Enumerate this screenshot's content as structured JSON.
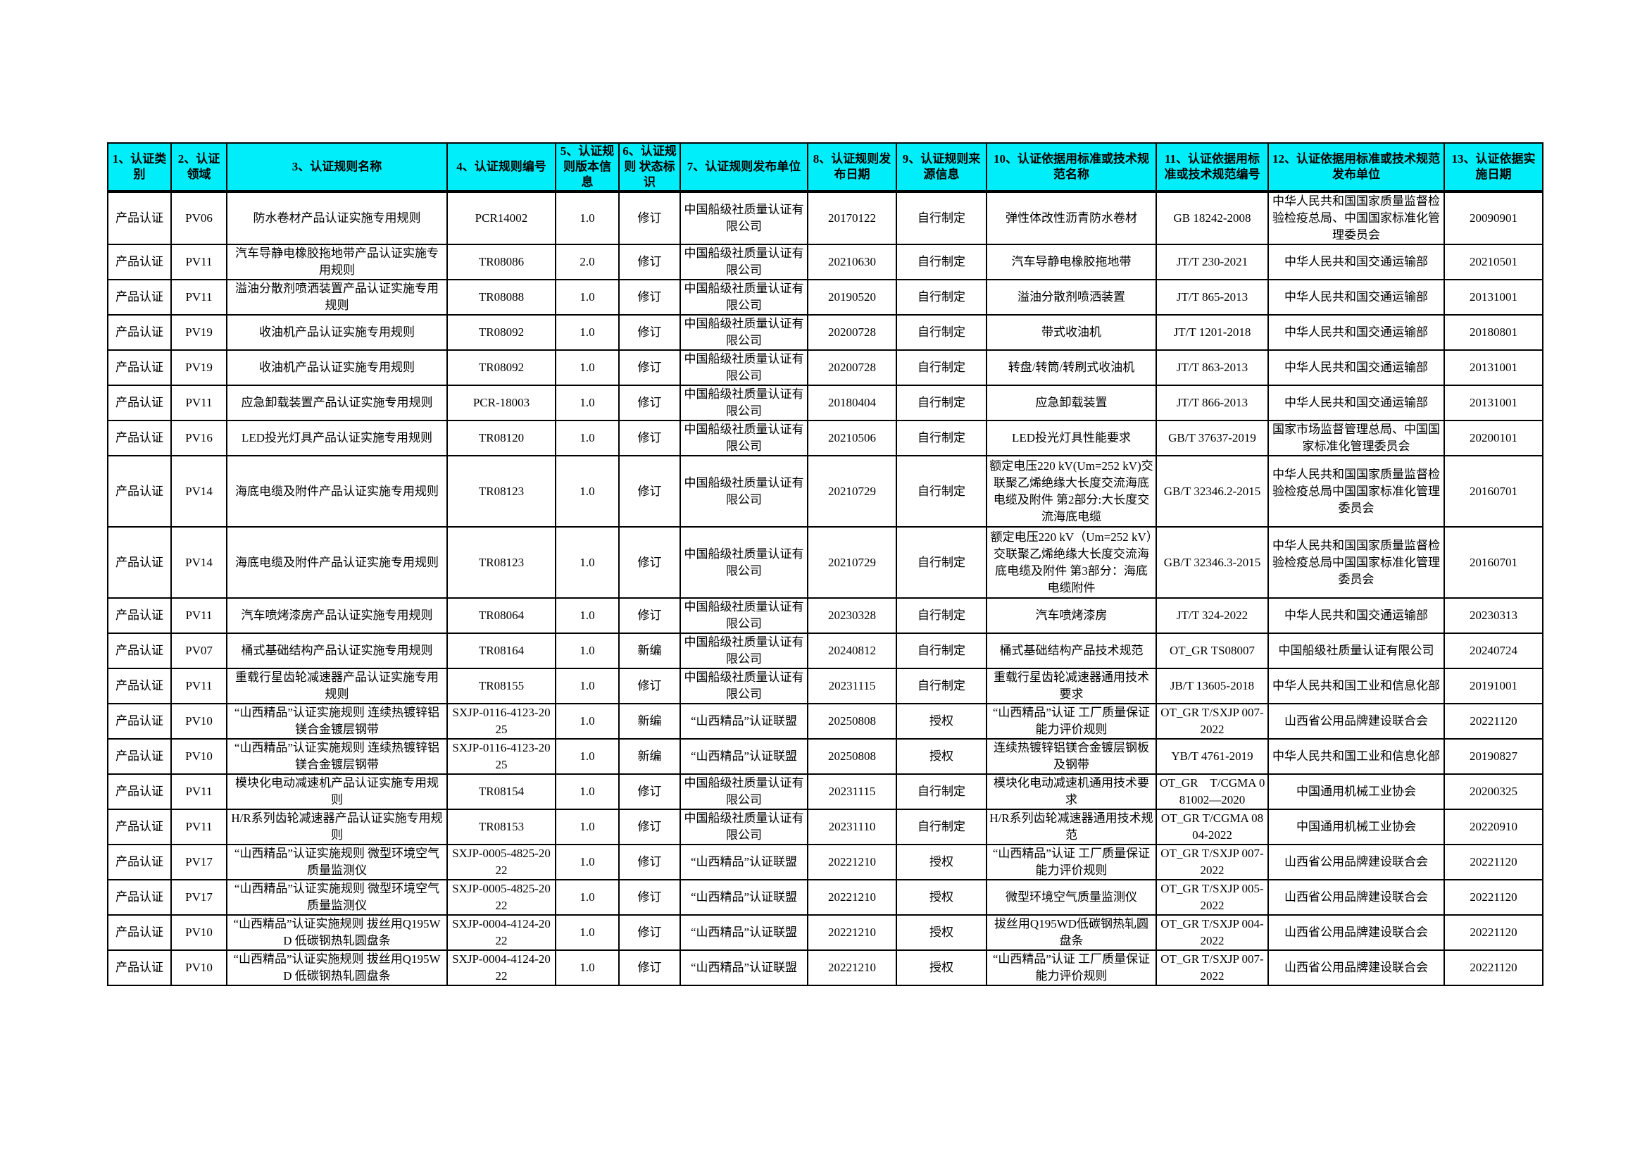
{
  "colors": {
    "header_bg": "#00eefa",
    "border": "#000000"
  },
  "table": {
    "headers": [
      "1、认证类别",
      "2、认证领域",
      "3、认证规则名称",
      "4、认证规则编号",
      "5、认证规则版本信息",
      "6、认证规则 状态标识",
      "7、认证规则发布单位",
      "8、认证规则发布日期",
      "9、认证规则来源信息",
      "10、认证依据用标准或技术规范名称",
      "11、认证依据用标准或技术规范编号",
      "12、认证依据用标准或技术规范发布单位",
      "13、认证依据实施日期"
    ],
    "rows": [
      [
        "产品认证",
        "PV06",
        "防水卷材产品认证实施专用规则",
        "PCR14002",
        "1.0",
        "修订",
        "中国船级社质量认证有限公司",
        "20170122",
        "自行制定",
        "弹性体改性沥青防水卷材",
        "GB 18242-2008",
        "中华人民共和国国家质量监督检验检疫总局、中国国家标准化管理委员会",
        "20090901"
      ],
      [
        "产品认证",
        "PV11",
        "汽车导静电橡胶拖地带产品认证实施专用规则",
        "TR08086",
        "2.0",
        "修订",
        "中国船级社质量认证有限公司",
        "20210630",
        "自行制定",
        "汽车导静电橡胶拖地带",
        "JT/T 230-2021",
        "中华人民共和国交通运输部",
        "20210501"
      ],
      [
        "产品认证",
        "PV11",
        "溢油分散剂喷洒装置产品认证实施专用规则",
        "TR08088",
        "1.0",
        "修订",
        "中国船级社质量认证有限公司",
        "20190520",
        "自行制定",
        "溢油分散剂喷洒装置",
        "JT/T 865-2013",
        "中华人民共和国交通运输部",
        "20131001"
      ],
      [
        "产品认证",
        "PV19",
        "收油机产品认证实施专用规则",
        "TR08092",
        "1.0",
        "修订",
        "中国船级社质量认证有限公司",
        "20200728",
        "自行制定",
        "带式收油机",
        "JT/T 1201-2018",
        "中华人民共和国交通运输部",
        "20180801"
      ],
      [
        "产品认证",
        "PV19",
        "收油机产品认证实施专用规则",
        "TR08092",
        "1.0",
        "修订",
        "中国船级社质量认证有限公司",
        "20200728",
        "自行制定",
        "转盘/转筒/转刷式收油机",
        "JT/T 863-2013",
        "中华人民共和国交通运输部",
        "20131001"
      ],
      [
        "产品认证",
        "PV11",
        "应急卸载装置产品认证实施专用规则",
        "PCR-18003",
        "1.0",
        "修订",
        "中国船级社质量认证有限公司",
        "20180404",
        "自行制定",
        "应急卸载装置",
        "JT/T 866-2013",
        "中华人民共和国交通运输部",
        "20131001"
      ],
      [
        "产品认证",
        "PV16",
        "LED投光灯具产品认证实施专用规则",
        "TR08120",
        "1.0",
        "修订",
        "中国船级社质量认证有限公司",
        "20210506",
        "自行制定",
        "LED投光灯具性能要求",
        "GB/T 37637-2019",
        "国家市场监督管理总局、中国国家标准化管理委员会",
        "20200101"
      ],
      [
        "产品认证",
        "PV14",
        "海底电缆及附件产品认证实施专用规则",
        "TR08123",
        "1.0",
        "修订",
        "中国船级社质量认证有限公司",
        "20210729",
        "自行制定",
        "额定电压220 kV(Um=252 kV)交联聚乙烯绝缘大长度交流海底电缆及附件 第2部分:大长度交流海底电缆",
        "GB/T 32346.2-2015",
        "中华人民共和国国家质量监督检验检疫总局中国国家标准化管理委员会",
        "20160701"
      ],
      [
        "产品认证",
        "PV14",
        "海底电缆及附件产品认证实施专用规则",
        "TR08123",
        "1.0",
        "修订",
        "中国船级社质量认证有限公司",
        "20210729",
        "自行制定",
        "额定电压220 kV（Um=252 kV）交联聚乙烯绝缘大长度交流海底电缆及附件 第3部分：海底电缆附件",
        "GB/T 32346.3-2015",
        "中华人民共和国国家质量监督检验检疫总局中国国家标准化管理委员会",
        "20160701"
      ],
      [
        "产品认证",
        "PV11",
        "汽车喷烤漆房产品认证实施专用规则",
        "TR08064",
        "1.0",
        "修订",
        "中国船级社质量认证有限公司",
        "20230328",
        "自行制定",
        "汽车喷烤漆房",
        "JT/T 324-2022",
        "中华人民共和国交通运输部",
        "20230313"
      ],
      [
        "产品认证",
        "PV07",
        "桶式基础结构产品认证实施专用规则",
        "TR08164",
        "1.0",
        "新编",
        "中国船级社质量认证有限公司",
        "20240812",
        "自行制定",
        "桶式基础结构产品技术规范",
        "OT_GR TS08007",
        "中国船级社质量认证有限公司",
        "20240724"
      ],
      [
        "产品认证",
        "PV11",
        "重载行星齿轮减速器产品认证实施专用规则",
        "TR08155",
        "1.0",
        "修订",
        "中国船级社质量认证有限公司",
        "20231115",
        "自行制定",
        "重载行星齿轮减速器通用技术要求",
        "JB/T 13605-2018",
        "中华人民共和国工业和信息化部",
        "20191001"
      ],
      [
        "产品认证",
        "PV10",
        "“山西精品”认证实施规则 连续热镀锌铝镁合金镀层钢带",
        "SXJP-0116-4123-2025",
        "1.0",
        "新编",
        "“山西精品”认证联盟",
        "20250808",
        "授权",
        "“山西精品”认证 工厂质量保证能力评价规则",
        "OT_GR T/SXJP 007-2022",
        "山西省公用品牌建设联合会",
        "20221120"
      ],
      [
        "产品认证",
        "PV10",
        "“山西精品”认证实施规则 连续热镀锌铝镁合金镀层钢带",
        "SXJP-0116-4123-2025",
        "1.0",
        "新编",
        "“山西精品”认证联盟",
        "20250808",
        "授权",
        "连续热镀锌铝镁合金镀层钢板及钢带",
        "YB/T 4761-2019",
        "中华人民共和国工业和信息化部",
        "20190827"
      ],
      [
        "产品认证",
        "PV11",
        "模块化电动减速机产品认证实施专用规则",
        "TR08154",
        "1.0",
        "修订",
        "中国船级社质量认证有限公司",
        "20231115",
        "自行制定",
        "模块化电动减速机通用技术要求",
        "OT_GR　T/CGMA 081002—2020",
        "中国通用机械工业协会",
        "20200325"
      ],
      [
        "产品认证",
        "PV11",
        "H/R系列齿轮减速器产品认证实施专用规则",
        "TR08153",
        "1.0",
        "修订",
        "中国船级社质量认证有限公司",
        "20231110",
        "自行制定",
        "H/R系列齿轮减速器通用技术规范",
        "OT_GR T/CGMA 0804-2022",
        "中国通用机械工业协会",
        "20220910"
      ],
      [
        "产品认证",
        "PV17",
        "“山西精品”认证实施规则 微型环境空气质量监测仪",
        "SXJP-0005-4825-2022",
        "1.0",
        "修订",
        "“山西精品”认证联盟",
        "20221210",
        "授权",
        "“山西精品”认证 工厂质量保证能力评价规则",
        "OT_GR T/SXJP 007-2022",
        "山西省公用品牌建设联合会",
        "20221120"
      ],
      [
        "产品认证",
        "PV17",
        "“山西精品”认证实施规则 微型环境空气质量监测仪",
        "SXJP-0005-4825-2022",
        "1.0",
        "修订",
        "“山西精品”认证联盟",
        "20221210",
        "授权",
        "微型环境空气质量监测仪",
        "OT_GR T/SXJP 005-2022",
        "山西省公用品牌建设联合会",
        "20221120"
      ],
      [
        "产品认证",
        "PV10",
        "“山西精品”认证实施规则 拔丝用Q195WD 低碳钢热轧圆盘条",
        "SXJP-0004-4124-2022",
        "1.0",
        "修订",
        "“山西精品”认证联盟",
        "20221210",
        "授权",
        "拔丝用Q195WD低碳钢热轧圆盘条",
        "OT_GR T/SXJP 004-2022",
        "山西省公用品牌建设联合会",
        "20221120"
      ],
      [
        "产品认证",
        "PV10",
        "“山西精品”认证实施规则 拔丝用Q195WD 低碳钢热轧圆盘条",
        "SXJP-0004-4124-2022",
        "1.0",
        "修订",
        "“山西精品”认证联盟",
        "20221210",
        "授权",
        "“山西精品”认证 工厂质量保证能力评价规则",
        "OT_GR T/SXJP 007-2022",
        "山西省公用品牌建设联合会",
        "20221120"
      ]
    ]
  }
}
